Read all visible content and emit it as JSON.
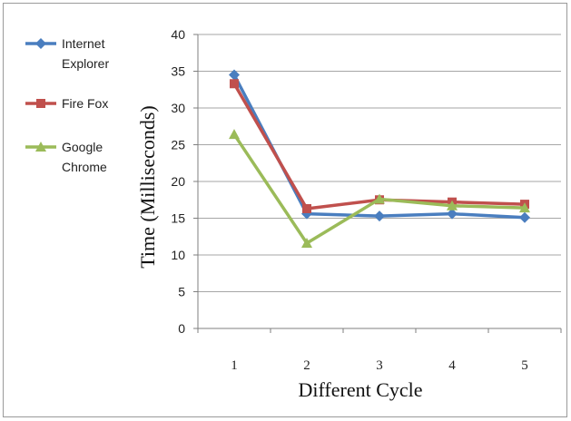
{
  "chart_data": {
    "type": "line",
    "title": "",
    "xlabel": "Different Cycle",
    "ylabel": "Time (Milliseconds)",
    "x": [
      1,
      2,
      3,
      4,
      5
    ],
    "categories": [
      "1",
      "2",
      "3",
      "4",
      "5"
    ],
    "ylim": [
      0,
      40
    ],
    "yticks": [
      0,
      5,
      10,
      15,
      20,
      25,
      30,
      35,
      40
    ],
    "grid": "horizontal",
    "legend_position": "left",
    "series": [
      {
        "name": "Internet Explorer",
        "legend_lines": [
          "Internet",
          "Explorer"
        ],
        "color": "#4a7ebf",
        "marker": "diamond",
        "values": [
          34.5,
          15.6,
          15.3,
          15.6,
          15.1
        ]
      },
      {
        "name": "Fire Fox",
        "legend_lines": [
          "Fire Fox"
        ],
        "color": "#c0504d",
        "marker": "square",
        "values": [
          33.3,
          16.3,
          17.5,
          17.2,
          16.9
        ]
      },
      {
        "name": "Google Chrome",
        "legend_lines": [
          "Google",
          "Chrome"
        ],
        "color": "#9bbb59",
        "marker": "triangle",
        "values": [
          26.4,
          11.6,
          17.6,
          16.7,
          16.4
        ]
      }
    ]
  }
}
